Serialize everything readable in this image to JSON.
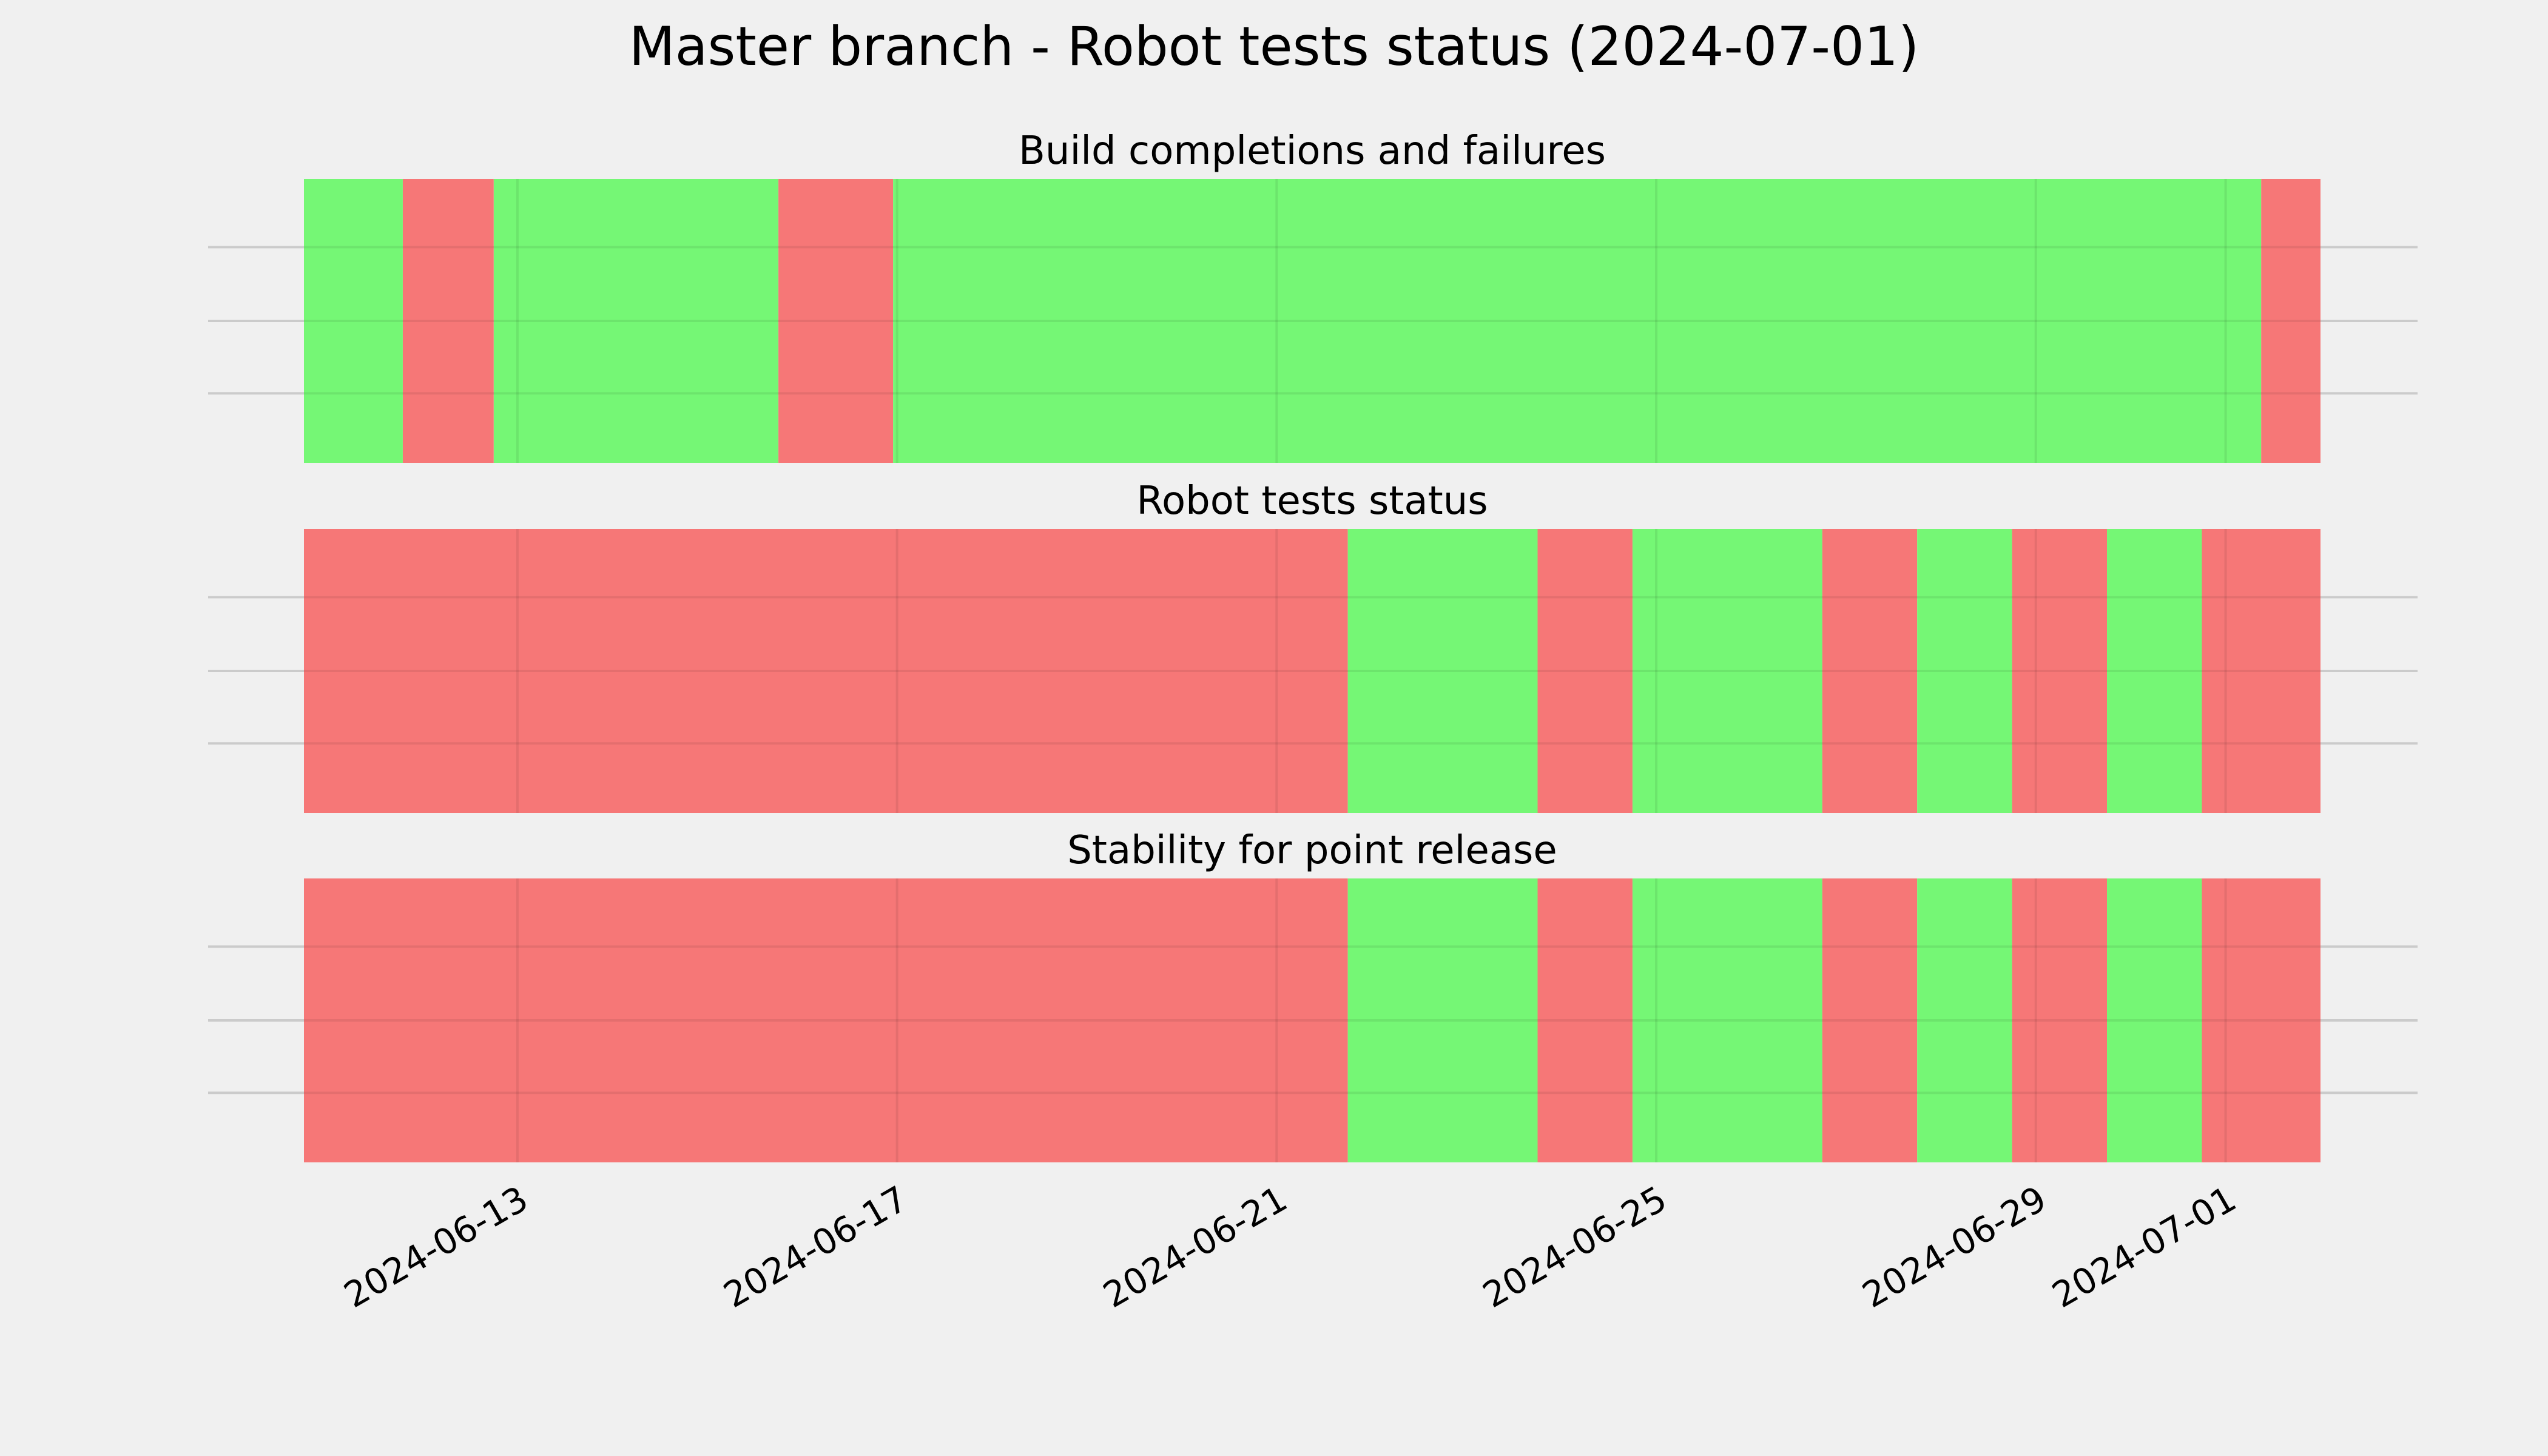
{
  "figure": {
    "title": "Master branch - Robot tests status (2024-07-01)",
    "background": "#f0f0f0"
  },
  "colors": {
    "pass": "#75f775",
    "fail": "#f67777",
    "grid": "#cbcbcb",
    "text": "#000000"
  },
  "chart_data": [
    {
      "type": "timeline",
      "title": "Build completions and failures",
      "xlim": [
        "2024-06-10T18:00",
        "2024-07-02T00:00"
      ],
      "x_ticks": [
        "2024-06-13",
        "2024-06-17",
        "2024-06-21",
        "2024-06-25",
        "2024-06-29",
        "2024-07-01"
      ],
      "grid": true,
      "segments": [
        {
          "start": "2024-06-10T18:00",
          "end": "2024-06-11T19:00",
          "status": "pass"
        },
        {
          "start": "2024-06-11T19:00",
          "end": "2024-06-12T18:00",
          "status": "fail"
        },
        {
          "start": "2024-06-12T18:00",
          "end": "2024-06-15T18:00",
          "status": "pass"
        },
        {
          "start": "2024-06-15T18:00",
          "end": "2024-06-16T23:00",
          "status": "fail"
        },
        {
          "start": "2024-06-16T23:00",
          "end": "2024-07-01T09:00",
          "status": "pass"
        },
        {
          "start": "2024-07-01T09:00",
          "end": "2024-07-02T00:00",
          "status": "fail"
        }
      ]
    },
    {
      "type": "timeline",
      "title": "Robot tests status",
      "xlim": [
        "2024-06-10T18:00",
        "2024-07-02T00:00"
      ],
      "x_ticks": [
        "2024-06-13",
        "2024-06-17",
        "2024-06-21",
        "2024-06-25",
        "2024-06-29",
        "2024-07-01"
      ],
      "grid": true,
      "segments": [
        {
          "start": "2024-06-10T18:00",
          "end": "2024-06-21T18:00",
          "status": "fail"
        },
        {
          "start": "2024-06-21T18:00",
          "end": "2024-06-23T18:00",
          "status": "pass"
        },
        {
          "start": "2024-06-23T18:00",
          "end": "2024-06-24T18:00",
          "status": "fail"
        },
        {
          "start": "2024-06-24T18:00",
          "end": "2024-06-26T18:00",
          "status": "pass"
        },
        {
          "start": "2024-06-26T18:00",
          "end": "2024-06-27T18:00",
          "status": "fail"
        },
        {
          "start": "2024-06-27T18:00",
          "end": "2024-06-28T18:00",
          "status": "pass"
        },
        {
          "start": "2024-06-28T18:00",
          "end": "2024-06-29T18:00",
          "status": "fail"
        },
        {
          "start": "2024-06-29T18:00",
          "end": "2024-06-30T18:00",
          "status": "pass"
        },
        {
          "start": "2024-06-30T18:00",
          "end": "2024-07-02T00:00",
          "status": "fail"
        }
      ]
    },
    {
      "type": "timeline",
      "title": "Stability for point release",
      "xlim": [
        "2024-06-10T18:00",
        "2024-07-02T00:00"
      ],
      "x_ticks": [
        "2024-06-13",
        "2024-06-17",
        "2024-06-21",
        "2024-06-25",
        "2024-06-29",
        "2024-07-01"
      ],
      "grid": true,
      "segments": [
        {
          "start": "2024-06-10T18:00",
          "end": "2024-06-21T18:00",
          "status": "fail"
        },
        {
          "start": "2024-06-21T18:00",
          "end": "2024-06-23T18:00",
          "status": "pass"
        },
        {
          "start": "2024-06-23T18:00",
          "end": "2024-06-24T18:00",
          "status": "fail"
        },
        {
          "start": "2024-06-24T18:00",
          "end": "2024-06-26T18:00",
          "status": "pass"
        },
        {
          "start": "2024-06-26T18:00",
          "end": "2024-06-27T18:00",
          "status": "fail"
        },
        {
          "start": "2024-06-27T18:00",
          "end": "2024-06-28T18:00",
          "status": "pass"
        },
        {
          "start": "2024-06-28T18:00",
          "end": "2024-06-29T18:00",
          "status": "fail"
        },
        {
          "start": "2024-06-29T18:00",
          "end": "2024-06-30T18:00",
          "status": "pass"
        },
        {
          "start": "2024-06-30T18:00",
          "end": "2024-07-02T00:00",
          "status": "fail"
        }
      ]
    }
  ]
}
